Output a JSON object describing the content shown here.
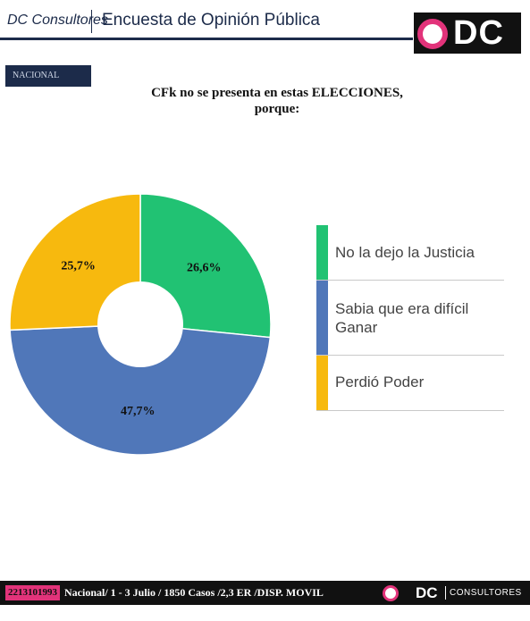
{
  "header": {
    "brand": "DC Consultores",
    "survey": "Encuesta de Opinión Pública",
    "logo_text": "DC"
  },
  "region": "NACIONAL",
  "title_line1": "CFk no se presenta en estas ELECCIONES,",
  "title_line2": "porque:",
  "chart_data": {
    "type": "pie",
    "title": "CFk no se presenta en estas ELECCIONES, porque:",
    "legend_position": "right",
    "categories": [
      "No la dejo la Justicia",
      "Sabia que era difícil Ganar",
      "Perdió Poder"
    ],
    "values": [
      26.6,
      47.7,
      25.7
    ],
    "labels": [
      "26,6%",
      "47,7%",
      "25,7%"
    ],
    "colors": [
      "#21c273",
      "#5077b9",
      "#f7b90e"
    ]
  },
  "colors": {
    "navy": "#1c2b4a",
    "pink": "#e2337a",
    "green": "#21c273",
    "blue": "#5077b9",
    "yellow": "#f7b90e"
  },
  "footer": {
    "phone": "2213101993",
    "info": "Nacional/ 1 - 3 Julio / 1850 Casos /2,3   ER /DISP. MOVIL",
    "dc": "DC",
    "consultores": "CONSULTORES"
  }
}
